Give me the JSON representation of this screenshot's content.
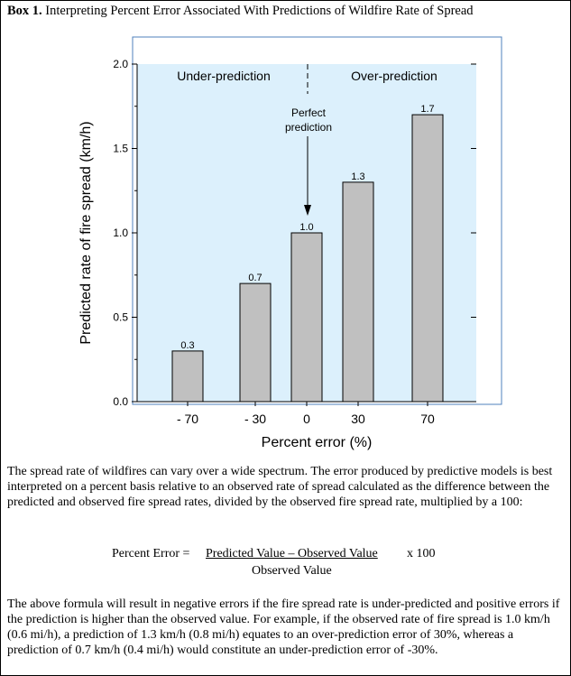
{
  "box": {
    "label": "Box 1.",
    "title": "Interpreting Percent Error Associated With Predictions of Wildfire Rate of Spread"
  },
  "chart_data": {
    "type": "bar",
    "categories": [
      "- 70",
      "- 30",
      "0",
      "30",
      "70"
    ],
    "values": [
      0.3,
      0.7,
      1.0,
      1.3,
      1.7
    ],
    "data_labels": [
      "0.3",
      "0.7",
      "1.0",
      "1.3",
      "1.7"
    ],
    "xlabel": "Percent error (%)",
    "ylabel": "Predicted rate of fire spread (km/h)",
    "ylim": [
      0,
      2.0
    ],
    "yticks": [
      "0.0",
      "0.5",
      "1.0",
      "1.5",
      "2.0"
    ],
    "annotations": {
      "left_region": "Under-prediction",
      "right_region": "Over-prediction",
      "arrow_label_line1": "Perfect",
      "arrow_label_line2": "prediction"
    },
    "grid": false,
    "colors": {
      "plot_background": "#dcf0fc",
      "bar_fill": "#c0c0c0"
    }
  },
  "text": {
    "paragraph1": "The spread rate of wildfires can vary over a wide spectrum. The error produced by predictive models is best interpreted on a percent basis relative to an observed rate of spread calculated as the difference between the predicted and observed fire spread rates, divided by the observed fire spread rate, multiplied by a 100:",
    "formula_label": "Percent Error = ",
    "formula_numerator": "Predicted Value – Observed Value",
    "formula_multiplier": " x 100",
    "formula_denominator": "Observed Value",
    "paragraph2": "The above formula will result in negative errors if the fire spread rate is under-predicted and positive errors if the prediction is higher than the observed value. For example, if the observed rate of fire spread is 1.0 km/h (0.6 mi/h), a prediction of 1.3 km/h (0.8 mi/h) equates to an over-prediction error of 30%, whereas a prediction of 0.7 km/h (0.4 mi/h) would constitute an under-prediction error of -30%."
  }
}
